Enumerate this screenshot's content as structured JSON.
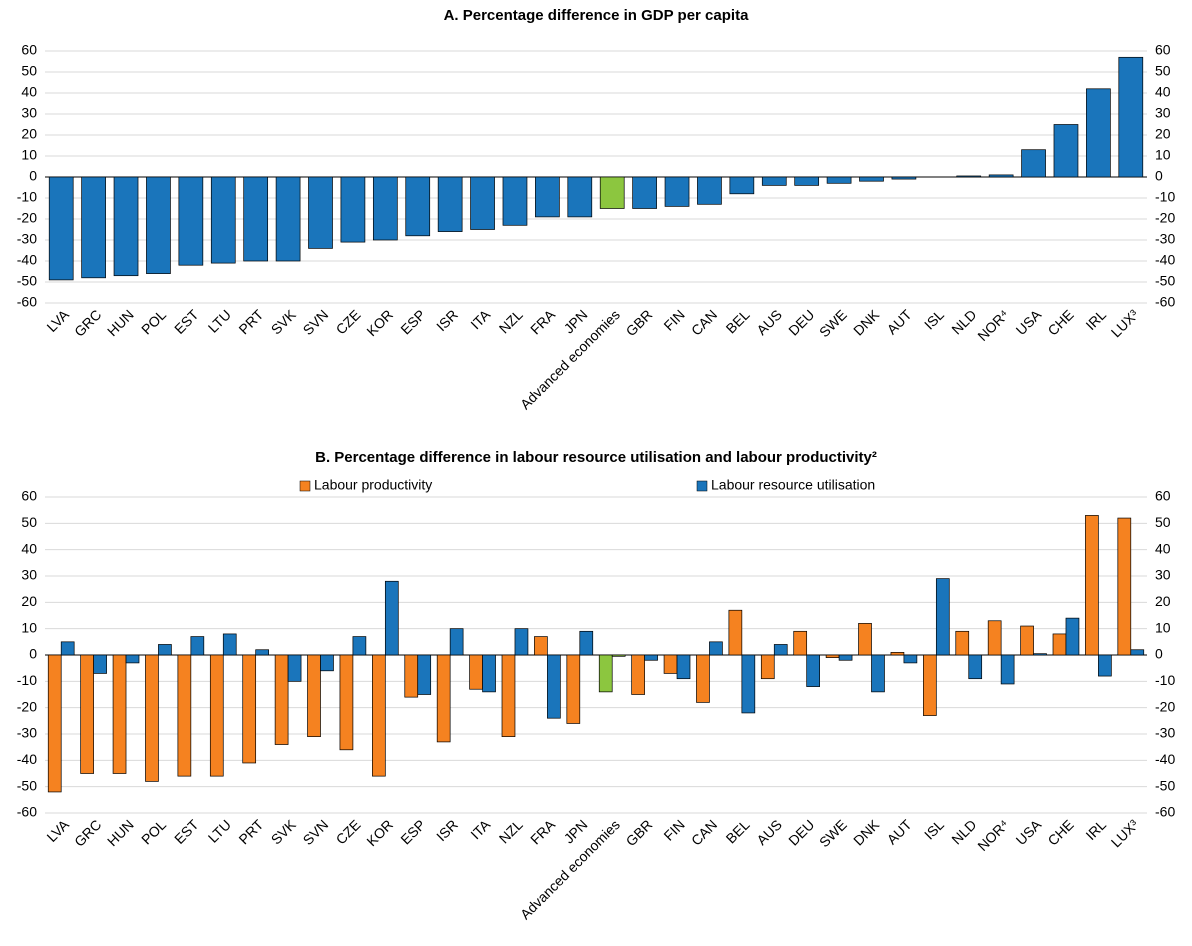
{
  "chart_data": [
    {
      "type": "bar",
      "title": "A. Percentage difference in GDP per capita",
      "categories": [
        "LVA",
        "GRC",
        "HUN",
        "POL",
        "EST",
        "LTU",
        "PRT",
        "SVK",
        "SVN",
        "CZE",
        "KOR",
        "ESP",
        "ISR",
        "ITA",
        "NZL",
        "FRA",
        "JPN",
        "Advanced economies",
        "GBR",
        "FIN",
        "CAN",
        "BEL",
        "AUS",
        "DEU",
        "SWE",
        "DNK",
        "AUT",
        "ISL",
        "NLD",
        "NOR⁴",
        "USA",
        "CHE",
        "IRL",
        "LUX³"
      ],
      "values": [
        -49,
        -48,
        -47,
        -46,
        -42,
        -41,
        -40,
        -40,
        -34,
        -31,
        -30,
        -28,
        -26,
        -25,
        -23,
        -19,
        -19,
        -15,
        -15,
        -14,
        -13,
        -8,
        -4,
        -4,
        -3,
        -2,
        -1,
        0,
        0.5,
        1,
        13,
        25,
        42,
        57
      ],
      "color": "#1a75bb",
      "highlight": {
        "category": "Advanced economies",
        "color": "#8cc63f"
      },
      "ylim": [
        -60,
        60
      ],
      "yticks": [
        -60,
        -50,
        -40,
        -30,
        -20,
        -10,
        0,
        10,
        20,
        30,
        40,
        50,
        60
      ],
      "grid": true
    },
    {
      "type": "bar",
      "title": "B. Percentage difference in labour resource utilisation and labour productivity²",
      "categories": [
        "LVA",
        "GRC",
        "HUN",
        "POL",
        "EST",
        "LTU",
        "PRT",
        "SVK",
        "SVN",
        "CZE",
        "KOR",
        "ESP",
        "ISR",
        "ITA",
        "NZL",
        "FRA",
        "JPN",
        "Advanced economies",
        "GBR",
        "FIN",
        "CAN",
        "BEL",
        "AUS",
        "DEU",
        "SWE",
        "DNK",
        "AUT",
        "ISL",
        "NLD",
        "NOR⁴",
        "USA",
        "CHE",
        "IRL",
        "LUX³"
      ],
      "series": [
        {
          "name": "Labour productivity",
          "color": "#f58220",
          "values": [
            -52,
            -45,
            -45,
            -48,
            -46,
            -46,
            -41,
            -34,
            -31,
            -36,
            -46,
            -16,
            -33,
            -13,
            -31,
            7,
            -26,
            -14,
            -15,
            -7,
            -18,
            17,
            -9,
            9,
            -1,
            12,
            1,
            -23,
            9,
            13,
            11,
            8,
            53,
            52
          ]
        },
        {
          "name": "Labour resource utilisation",
          "color": "#1a75bb",
          "values": [
            5,
            -7,
            -3,
            4,
            7,
            8,
            2,
            -10,
            -6,
            7,
            28,
            -15,
            10,
            -14,
            10,
            -24,
            9,
            -0.5,
            -2,
            -9,
            5,
            -22,
            4,
            -12,
            -2,
            -14,
            -3,
            29,
            -9,
            -11,
            0.5,
            14,
            -8,
            2
          ]
        }
      ],
      "highlight": {
        "category": "Advanced economies",
        "color": "#8cc63f"
      },
      "legend": "top",
      "ylim": [
        -60,
        60
      ],
      "yticks": [
        -60,
        -50,
        -40,
        -30,
        -20,
        -10,
        0,
        10,
        20,
        30,
        40,
        50,
        60
      ],
      "grid": true
    }
  ]
}
